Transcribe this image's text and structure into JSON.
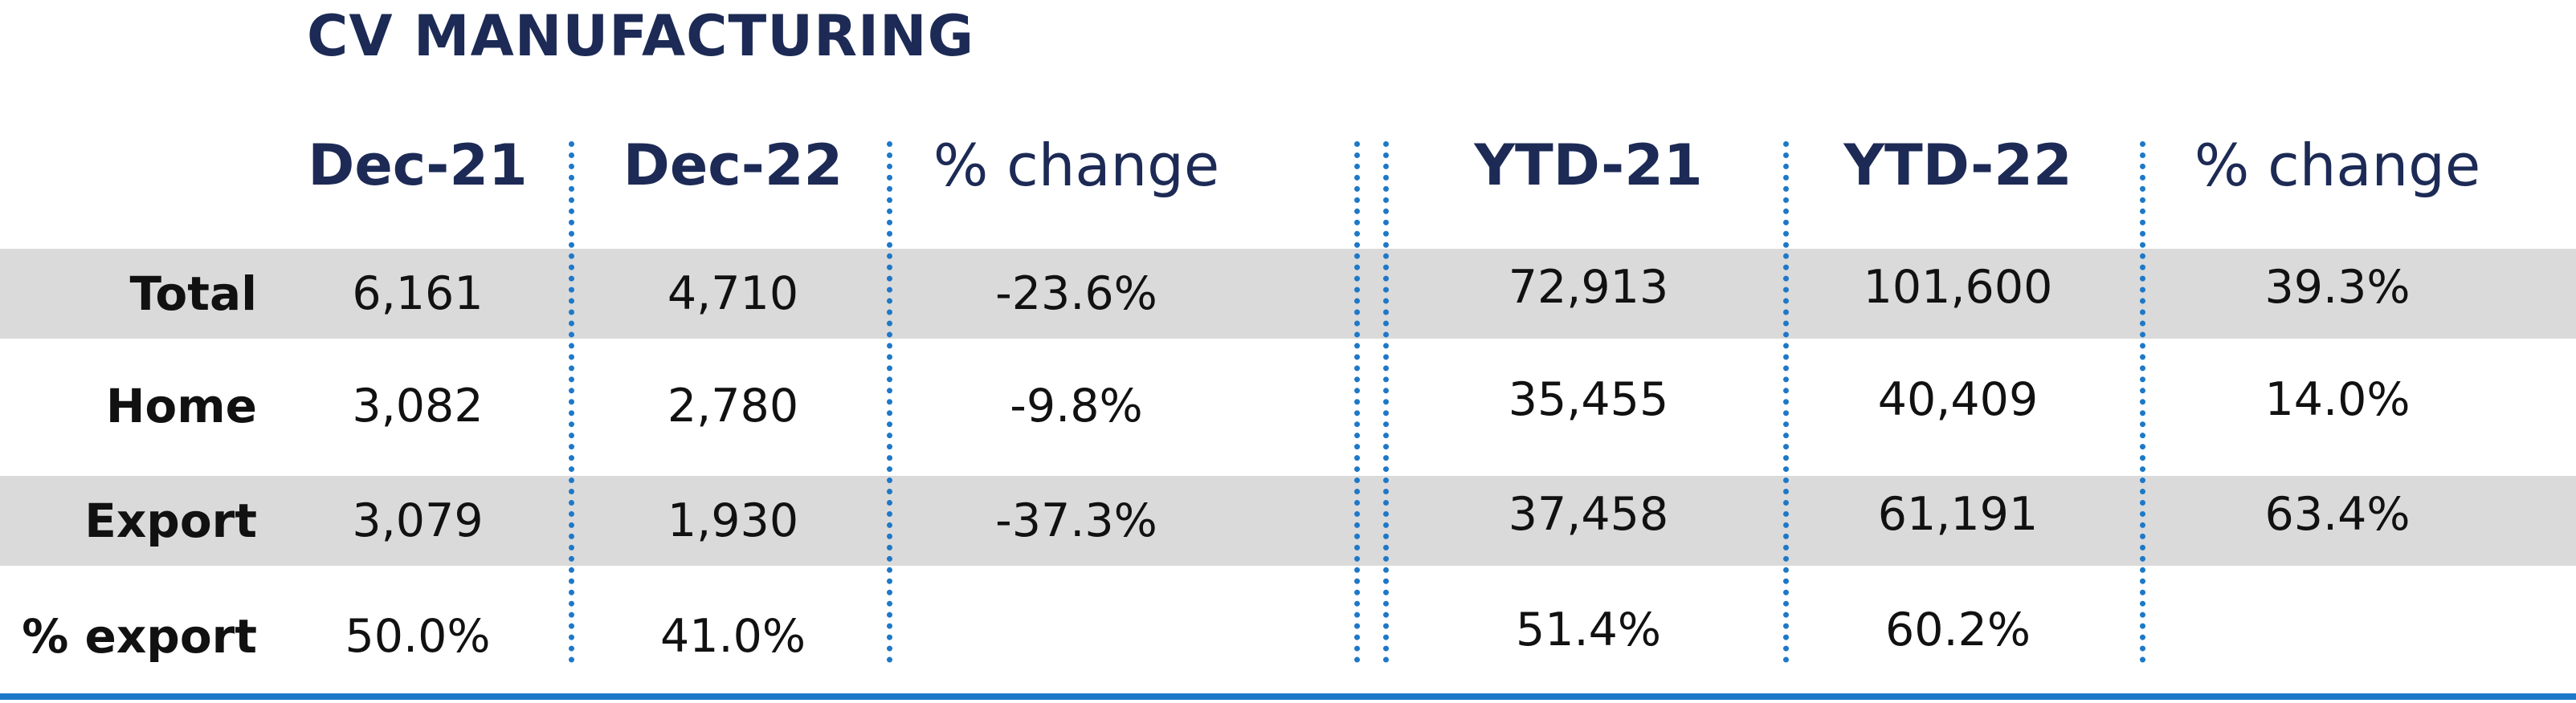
{
  "title": "CV MANUFACTURING",
  "headers": [
    "Dec-21",
    "Dec-22",
    "% change",
    "YTD-21",
    "YTD-22",
    "% change"
  ],
  "rows": [
    {
      "label": "Total",
      "values": [
        "6,161",
        "4,710",
        "-23.6%",
        "72,913",
        "101,600",
        "39.3%"
      ]
    },
    {
      "label": "Home",
      "values": [
        "3,082",
        "2,780",
        "-9.8%",
        "35,455",
        "40,409",
        "14.0%"
      ]
    },
    {
      "label": "Export",
      "values": [
        "3,079",
        "1,930",
        "-37.3%",
        "37,458",
        "61,191",
        "63.4%"
      ]
    },
    {
      "label": "% export",
      "values": [
        "50.0%",
        "41.0%",
        "",
        "51.4%",
        "60.2%",
        ""
      ]
    }
  ],
  "colors": {
    "title": "#1c2a55",
    "accent": "#1e78c8",
    "stripe": "#dadada"
  }
}
